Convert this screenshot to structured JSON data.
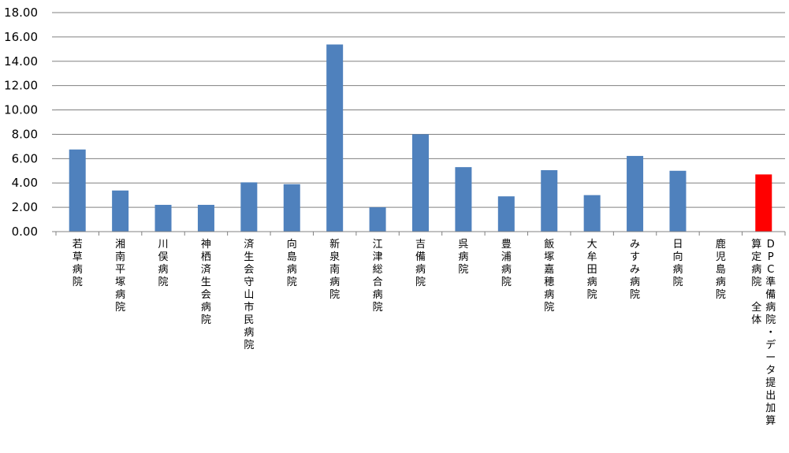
{
  "chart_data": {
    "type": "bar",
    "title": "",
    "xlabel": "",
    "ylabel": "",
    "ylim": [
      0,
      18
    ],
    "y_ticks": [
      "0.00",
      "2.00",
      "4.00",
      "6.00",
      "8.00",
      "10.00",
      "12.00",
      "14.00",
      "16.00",
      "18.00"
    ],
    "grid": true,
    "legend": "none",
    "categories": [
      "若草病院",
      "湘南平塚病院",
      "川俣病院",
      "神栖済生会病院",
      "済生会守山市民病院",
      "向島病院",
      "新泉南病院",
      "江津総合病院",
      "吉備病院",
      "呉病院",
      "豊浦病院",
      "飯塚嘉穂病院",
      "大牟田病院",
      "みすみ病院",
      "日向病院",
      "鹿児島病院",
      "DPC準備病院・データ提出加算算定病院 全体"
    ],
    "label_columns": [
      [
        "若草病院"
      ],
      [
        "湘南平塚病院"
      ],
      [
        "川俣病院"
      ],
      [
        "神栖済生会病院"
      ],
      [
        "済生会守山市民病院"
      ],
      [
        "向島病院"
      ],
      [
        "新泉南病院"
      ],
      [
        "江津総合病院"
      ],
      [
        "吉備病院"
      ],
      [
        "呉病院"
      ],
      [
        "豊浦病院"
      ],
      [
        "飯塚嘉穂病院"
      ],
      [
        "大牟田病院"
      ],
      [
        "みすみ病院"
      ],
      [
        "日向病院"
      ],
      [
        "鹿児島病院"
      ],
      [
        "DPC準備病院・データ提出加算",
        "算定病院　全体"
      ]
    ],
    "values": [
      6.75,
      3.38,
      2.2,
      2.2,
      4.05,
      3.9,
      15.38,
      2.0,
      8.0,
      5.3,
      2.9,
      5.05,
      3.0,
      6.22,
      5.0,
      0,
      4.7
    ],
    "colors": {
      "default_bar": "#4F81BD",
      "highlight_bar": "#FF0000",
      "grid": "#808080",
      "axis": "#808080"
    },
    "highlight_index": 16
  }
}
